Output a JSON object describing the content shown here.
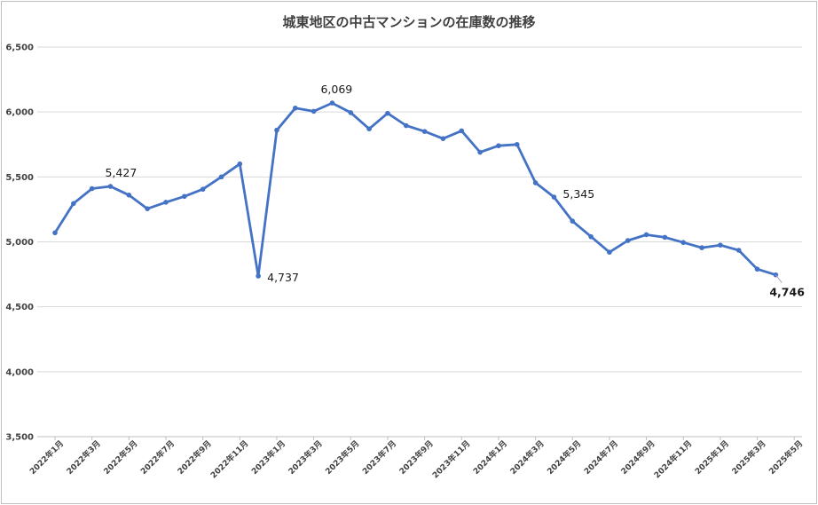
{
  "chart_data": {
    "type": "line",
    "title": "城東地区の中古マンションの在庫数の推移",
    "xlabel": "",
    "ylabel": "",
    "ylim": [
      3500,
      6500
    ],
    "yticks": [
      "3,500",
      "4,000",
      "4,500",
      "5,000",
      "5,500",
      "6,000",
      "6,500"
    ],
    "grid": true,
    "line_color": "#4472C4",
    "tick_labels": [
      "2022年1月",
      "2022年3月",
      "2022年5月",
      "2022年7月",
      "2022年9月",
      "2022年11月",
      "2023年1月",
      "2023年3月",
      "2023年5月",
      "2023年7月",
      "2023年9月",
      "2023年11月",
      "2024年1月",
      "2024年3月",
      "2024年5月",
      "2024年7月",
      "2024年9月",
      "2024年11月",
      "2025年1月",
      "2025年3月",
      "2025年5月"
    ],
    "x": [
      "2022年1月",
      "2022年2月",
      "2022年3月",
      "2022年4月",
      "2022年5月",
      "2022年6月",
      "2022年7月",
      "2022年8月",
      "2022年9月",
      "2022年10月",
      "2022年11月",
      "2022年12月",
      "2023年1月",
      "2023年2月",
      "2023年3月",
      "2023年4月",
      "2023年5月",
      "2023年6月",
      "2023年7月",
      "2023年8月",
      "2023年9月",
      "2023年10月",
      "2023年11月",
      "2023年12月",
      "2024年1月",
      "2024年2月",
      "2024年3月",
      "2024年4月",
      "2024年5月",
      "2024年6月",
      "2024年7月",
      "2024年8月",
      "2024年9月",
      "2024年10月",
      "2024年11月",
      "2024年12月",
      "2025年1月",
      "2025年2月",
      "2025年3月",
      "2025年4月"
    ],
    "values": [
      5070,
      5295,
      5410,
      5427,
      5360,
      5255,
      5305,
      5350,
      5405,
      5500,
      5600,
      4737,
      5860,
      6030,
      6005,
      6069,
      5995,
      5870,
      5990,
      5895,
      5850,
      5795,
      5855,
      5690,
      5740,
      5750,
      5455,
      5345,
      5160,
      5040,
      4920,
      5010,
      5055,
      5035,
      4995,
      4955,
      4975,
      4935,
      4790,
      4746
    ],
    "annotations": [
      {
        "index": 3,
        "text": "5,427",
        "bold": false
      },
      {
        "index": 11,
        "text": "4,737",
        "bold": false
      },
      {
        "index": 15,
        "text": "6,069",
        "bold": false
      },
      {
        "index": 27,
        "text": "5,345",
        "bold": false
      },
      {
        "index": 39,
        "text": "4,746",
        "bold": true
      }
    ]
  }
}
